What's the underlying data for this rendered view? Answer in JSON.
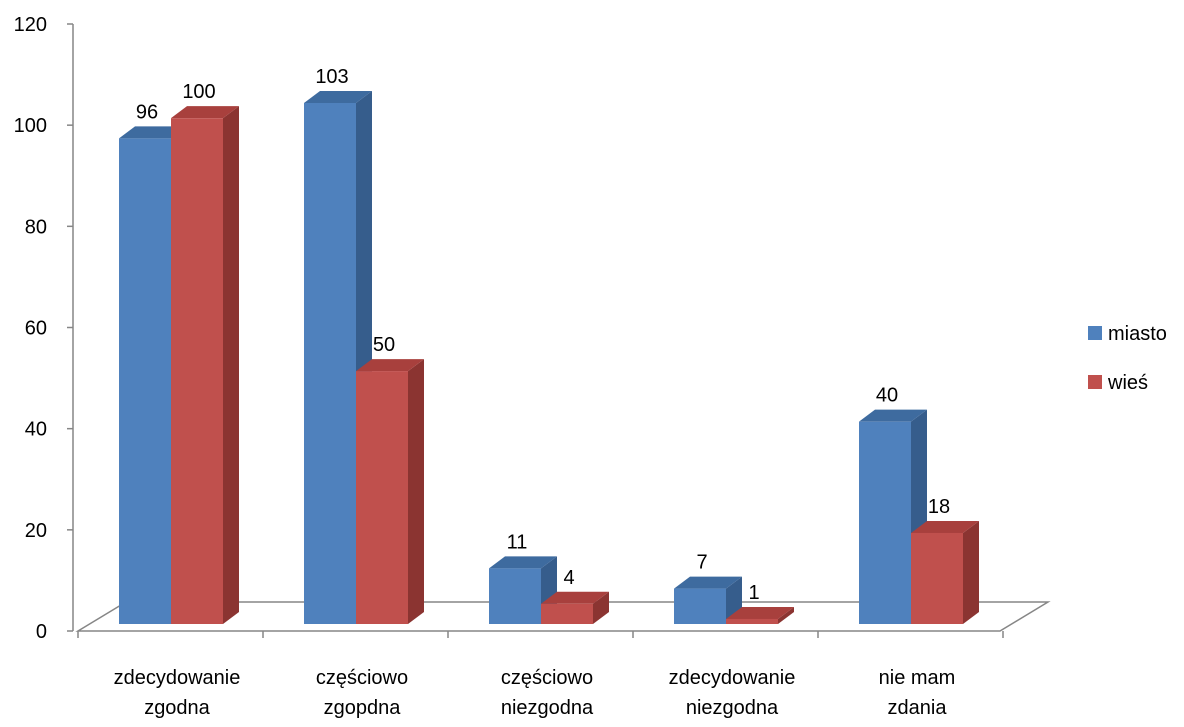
{
  "chart_data": {
    "type": "bar",
    "categories": [
      [
        "zdecydowanie",
        "zgodna"
      ],
      [
        "częściowo",
        "zgopdna"
      ],
      [
        "częściowo",
        "niezgodna"
      ],
      [
        "zdecydowanie",
        "niezgodna"
      ],
      [
        "nie mam",
        "zdania"
      ]
    ],
    "series": [
      {
        "name": "miasto",
        "values": [
          96,
          103,
          11,
          7,
          40
        ],
        "color": "#4f81bd",
        "top_color": "#3e6b9f",
        "side_color": "#365d8c"
      },
      {
        "name": "wieś",
        "values": [
          100,
          50,
          4,
          1,
          18
        ],
        "color": "#c0504d",
        "top_color": "#a8403d",
        "side_color": "#8b3431"
      }
    ],
    "title": "",
    "xlabel": "",
    "ylabel": "",
    "ylim": [
      0,
      120
    ],
    "yticks": [
      "0",
      "20",
      "40",
      "60",
      "80",
      "100",
      "120"
    ],
    "grid": false,
    "legend_position": "right",
    "style": "3d-clustered-column"
  }
}
